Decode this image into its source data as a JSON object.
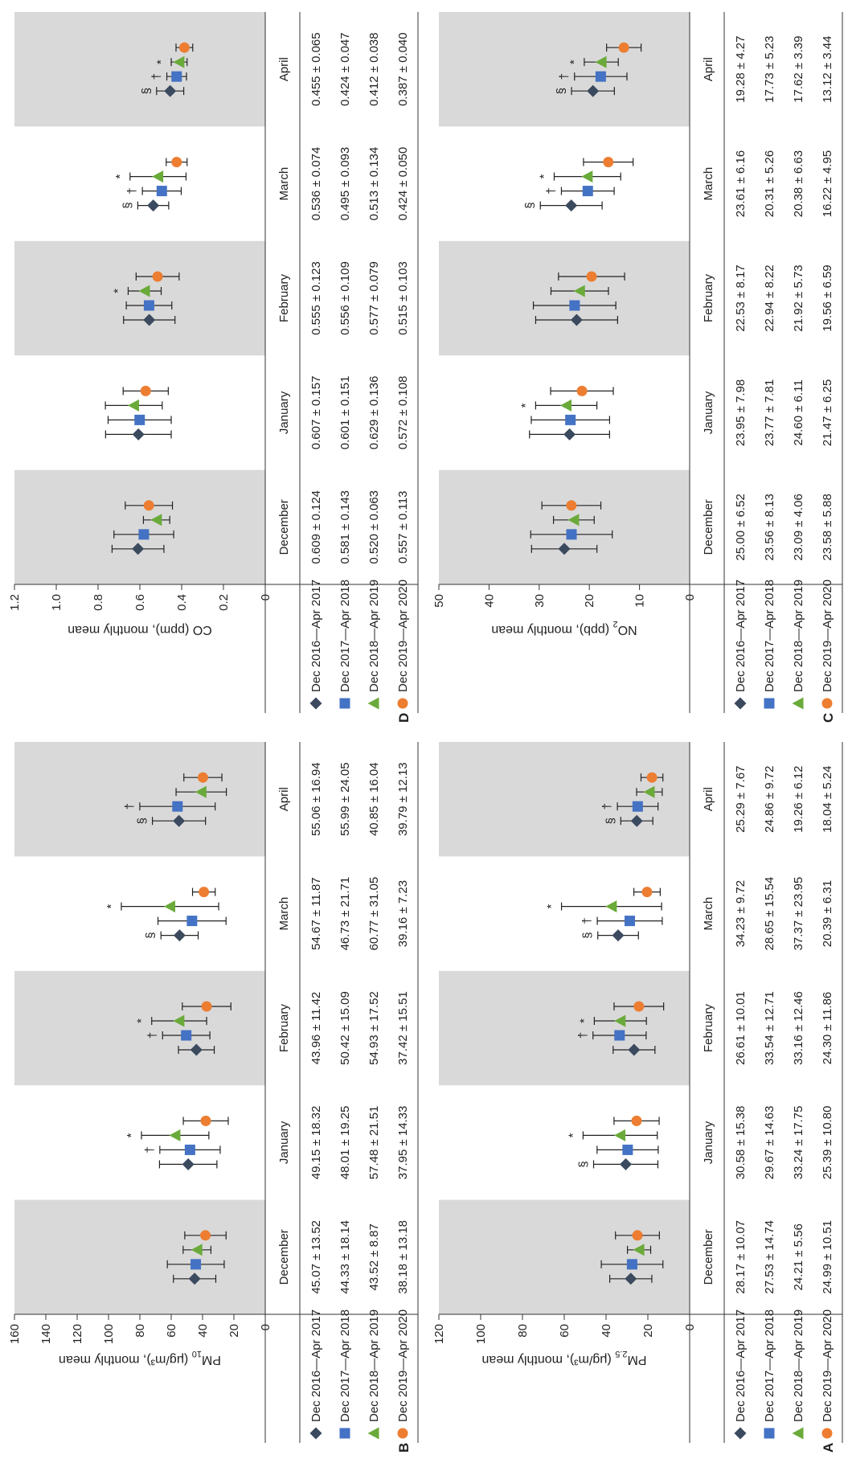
{
  "colors": {
    "series": [
      "#3b4a5e",
      "#4472c4",
      "#6aaa3a",
      "#ed7d31"
    ],
    "band": "#d9d9d9",
    "markers": [
      "diamond",
      "square",
      "triangle",
      "circle"
    ]
  },
  "legend_entries": [
    "Dec 2016—Apr 2017",
    "Dec 2017—Apr 2018",
    "Dec 2018—Apr 2019",
    "Dec 2019—Apr 2020"
  ],
  "chart_data": [
    {
      "panel": "A",
      "type": "scatter",
      "ylabel": "PM2.5 (μg/m³), monthly mean",
      "ylabel_base": "PM",
      "ylabel_sub": "2.5",
      "ylabel_rest": " (μg/m³), monthly mean",
      "ylim": [
        0,
        120
      ],
      "yticks": [
        "0",
        "20",
        "40",
        "60",
        "80",
        "100",
        "120"
      ],
      "categories": [
        "December",
        "January",
        "February",
        "March",
        "April"
      ],
      "series": [
        {
          "name": "Dec 2016—Apr 2017",
          "means": [
            28.17,
            30.58,
            26.61,
            34.23,
            25.29
          ],
          "sds": [
            10.07,
            15.38,
            10.01,
            9.72,
            7.67
          ],
          "cells": [
            "28.17 ± 10.07",
            "30.58 ± 15.38",
            "26.61 ± 10.01",
            "34.23 ± 9.72",
            "25.29 ± 7.67"
          ]
        },
        {
          "name": "Dec 2017—Apr 2018",
          "means": [
            27.53,
            29.67,
            33.54,
            28.65,
            24.86
          ],
          "sds": [
            14.74,
            14.63,
            12.71,
            15.54,
            9.72
          ],
          "cells": [
            "27.53 ± 14.74",
            "29.67 ± 14.63",
            "33.54 ± 12.71",
            "28.65 ± 15.54",
            "24.86 ± 9.72"
          ]
        },
        {
          "name": "Dec 2018—Apr 2019",
          "means": [
            24.21,
            33.24,
            33.16,
            37.37,
            19.26
          ],
          "sds": [
            5.56,
            17.75,
            12.46,
            23.95,
            6.12
          ],
          "cells": [
            "24.21 ± 5.56",
            "33.24 ± 17.75",
            "33.16 ± 12.46",
            "37.37 ± 23.95",
            "19.26 ± 6.12"
          ]
        },
        {
          "name": "Dec 2019—Apr 2020",
          "means": [
            24.99,
            25.39,
            24.3,
            20.39,
            18.04
          ],
          "sds": [
            10.51,
            10.8,
            11.86,
            6.31,
            5.24
          ],
          "cells": [
            "24.99 ± 10.51",
            "25.39 ± 10.80",
            "24.30 ± 11.86",
            "20.39 ± 6.31",
            "18.04 ± 5.24"
          ]
        }
      ],
      "annotations": [
        {
          "category": 1,
          "series": 0,
          "symbol": "§"
        },
        {
          "category": 1,
          "series": 2,
          "symbol": "*"
        },
        {
          "category": 2,
          "series": 1,
          "symbol": "†"
        },
        {
          "category": 2,
          "series": 2,
          "symbol": "*"
        },
        {
          "category": 3,
          "series": 0,
          "symbol": "§"
        },
        {
          "category": 3,
          "series": 1,
          "symbol": "†"
        },
        {
          "category": 3,
          "series": 2,
          "symbol": "*"
        },
        {
          "category": 4,
          "series": 0,
          "symbol": "§"
        },
        {
          "category": 4,
          "series": 1,
          "symbol": "†"
        }
      ]
    },
    {
      "panel": "B",
      "type": "scatter",
      "ylabel": "PM10 (μg/m³), monthly mean",
      "ylabel_base": "PM",
      "ylabel_sub": "10",
      "ylabel_rest": " (μg/m³), monthly mean",
      "ylim": [
        0,
        160
      ],
      "yticks": [
        "0",
        "20",
        "40",
        "60",
        "80",
        "100",
        "120",
        "140",
        "160"
      ],
      "categories": [
        "December",
        "January",
        "February",
        "March",
        "April"
      ],
      "series": [
        {
          "name": "Dec 2016—Apr 2017",
          "means": [
            45.07,
            49.15,
            43.96,
            54.67,
            55.06
          ],
          "sds": [
            13.52,
            18.32,
            11.42,
            11.87,
            16.94
          ],
          "cells": [
            "45.07 ± 13.52",
            "49.15 ± 18.32",
            "43.96 ± 11.42",
            "54.67 ± 11.87",
            "55.06 ± 16.94"
          ]
        },
        {
          "name": "Dec 2017—Apr 2018",
          "means": [
            44.33,
            48.01,
            50.42,
            46.73,
            55.99
          ],
          "sds": [
            18.14,
            19.25,
            15.09,
            21.71,
            24.05
          ],
          "cells": [
            "44.33 ± 18.14",
            "48.01 ± 19.25",
            "50.42 ± 15.09",
            "46.73 ± 21.71",
            "55.99 ± 24.05"
          ]
        },
        {
          "name": "Dec 2018—Apr 2019",
          "means": [
            43.52,
            57.48,
            54.93,
            60.77,
            40.85
          ],
          "sds": [
            8.87,
            21.51,
            17.52,
            31.05,
            16.04
          ],
          "cells": [
            "43.52 ± 8.87",
            "57.48 ± 21.51",
            "54.93 ± 17.52",
            "60.77 ± 31.05",
            "40.85 ± 16.04"
          ]
        },
        {
          "name": "Dec 2019—Apr 2020",
          "means": [
            38.18,
            37.95,
            37.42,
            39.16,
            39.79
          ],
          "sds": [
            13.18,
            14.33,
            15.51,
            7.23,
            12.13
          ],
          "cells": [
            "38.18 ± 13.18",
            "37.95 ± 14.33",
            "37.42 ± 15.51",
            "39.16 ± 7.23",
            "39.79 ± 12.13"
          ]
        }
      ],
      "annotations": [
        {
          "category": 1,
          "series": 1,
          "symbol": "†"
        },
        {
          "category": 1,
          "series": 2,
          "symbol": "*"
        },
        {
          "category": 2,
          "series": 1,
          "symbol": "†"
        },
        {
          "category": 2,
          "series": 2,
          "symbol": "*"
        },
        {
          "category": 3,
          "series": 0,
          "symbol": "§"
        },
        {
          "category": 3,
          "series": 2,
          "symbol": "*"
        },
        {
          "category": 4,
          "series": 0,
          "symbol": "§"
        },
        {
          "category": 4,
          "series": 1,
          "symbol": "†"
        }
      ]
    },
    {
      "panel": "C",
      "type": "scatter",
      "ylabel": "NO2 (ppb), monthly mean",
      "ylabel_base": "NO",
      "ylabel_sub": "2",
      "ylabel_rest": " (ppb), monthly mean",
      "ylim": [
        0,
        50
      ],
      "yticks": [
        "0",
        "10",
        "20",
        "30",
        "40",
        "50"
      ],
      "categories": [
        "December",
        "January",
        "February",
        "March",
        "April"
      ],
      "series": [
        {
          "name": "Dec 2016—Apr 2017",
          "means": [
            25.0,
            23.95,
            22.53,
            23.61,
            19.28
          ],
          "sds": [
            6.52,
            7.98,
            8.17,
            6.16,
            4.27
          ],
          "cells": [
            "25.00 ± 6.52",
            "23.95 ± 7.98",
            "22.53 ± 8.17",
            "23.61 ± 6.16",
            "19.28 ± 4.27"
          ]
        },
        {
          "name": "Dec 2017—Apr 2018",
          "means": [
            23.56,
            23.77,
            22.94,
            20.31,
            17.73
          ],
          "sds": [
            8.13,
            7.81,
            8.22,
            5.26,
            5.23
          ],
          "cells": [
            "23.56 ± 8.13",
            "23.77 ± 7.81",
            "22.94 ± 8.22",
            "20.31 ± 5.26",
            "17.73 ± 5.23"
          ]
        },
        {
          "name": "Dec 2018—Apr 2019",
          "means": [
            23.09,
            24.6,
            21.92,
            20.38,
            17.62
          ],
          "sds": [
            4.06,
            6.11,
            5.73,
            6.63,
            3.39
          ],
          "cells": [
            "23.09 ± 4.06",
            "24.60 ± 6.11",
            "21.92 ± 5.73",
            "20.38 ± 6.63",
            "17.62 ± 3.39"
          ]
        },
        {
          "name": "Dec 2019—Apr 2020",
          "means": [
            23.58,
            21.47,
            19.56,
            16.22,
            13.12
          ],
          "sds": [
            5.88,
            6.25,
            6.59,
            4.95,
            3.44
          ],
          "cells": [
            "23.58 ± 5.88",
            "21.47 ± 6.25",
            "19.56 ± 6.59",
            "16.22 ± 4.95",
            "13.12 ± 3.44"
          ]
        }
      ],
      "annotations": [
        {
          "category": 1,
          "series": 2,
          "symbol": "*"
        },
        {
          "category": 3,
          "series": 0,
          "symbol": "§"
        },
        {
          "category": 3,
          "series": 1,
          "symbol": "†"
        },
        {
          "category": 3,
          "series": 2,
          "symbol": "*"
        },
        {
          "category": 4,
          "series": 0,
          "symbol": "§"
        },
        {
          "category": 4,
          "series": 1,
          "symbol": "†"
        },
        {
          "category": 4,
          "series": 2,
          "symbol": "*"
        }
      ]
    },
    {
      "panel": "D",
      "type": "scatter",
      "ylabel": "CO (ppm), monthly mean",
      "ylabel_base": "CO (ppm), monthly mean",
      "ylabel_sub": "",
      "ylabel_rest": "",
      "ylim": [
        0,
        1.2
      ],
      "yticks": [
        "0",
        "0.2",
        "0.4",
        "0.6",
        "0.8",
        "1.0",
        "1.2"
      ],
      "categories": [
        "December",
        "January",
        "February",
        "March",
        "April"
      ],
      "series": [
        {
          "name": "Dec 2016—Apr 2017",
          "means": [
            0.609,
            0.607,
            0.555,
            0.536,
            0.455
          ],
          "sds": [
            0.124,
            0.157,
            0.123,
            0.074,
            0.065
          ],
          "cells": [
            "0.609 ± 0.124",
            "0.607 ± 0.157",
            "0.555 ± 0.123",
            "0.536 ± 0.074",
            "0.455 ± 0.065"
          ]
        },
        {
          "name": "Dec 2017—Apr 2018",
          "means": [
            0.581,
            0.601,
            0.556,
            0.495,
            0.424
          ],
          "sds": [
            0.143,
            0.151,
            0.109,
            0.093,
            0.047
          ],
          "cells": [
            "0.581 ± 0.143",
            "0.601 ± 0.151",
            "0.556 ± 0.109",
            "0.495 ± 0.093",
            "0.424 ± 0.047"
          ]
        },
        {
          "name": "Dec 2018—Apr 2019",
          "means": [
            0.52,
            0.629,
            0.577,
            0.513,
            0.412
          ],
          "sds": [
            0.063,
            0.136,
            0.079,
            0.134,
            0.038
          ],
          "cells": [
            "0.520 ± 0.063",
            "0.629 ± 0.136",
            "0.577 ± 0.079",
            "0.513 ± 0.134",
            "0.412 ± 0.038"
          ]
        },
        {
          "name": "Dec 2019—Apr 2020",
          "means": [
            0.557,
            0.572,
            0.515,
            0.424,
            0.387
          ],
          "sds": [
            0.113,
            0.108,
            0.103,
            0.05,
            0.04
          ],
          "cells": [
            "0.557 ± 0.113",
            "0.572 ± 0.108",
            "0.515 ± 0.103",
            "0.424 ± 0.050",
            "0.387 ± 0.040"
          ]
        }
      ],
      "annotations": [
        {
          "category": 2,
          "series": 2,
          "symbol": "*"
        },
        {
          "category": 3,
          "series": 0,
          "symbol": "§"
        },
        {
          "category": 3,
          "series": 1,
          "symbol": "†"
        },
        {
          "category": 3,
          "series": 2,
          "symbol": "*"
        },
        {
          "category": 4,
          "series": 0,
          "symbol": "§"
        },
        {
          "category": 4,
          "series": 1,
          "symbol": "†"
        },
        {
          "category": 4,
          "series": 2,
          "symbol": "*"
        }
      ]
    }
  ]
}
